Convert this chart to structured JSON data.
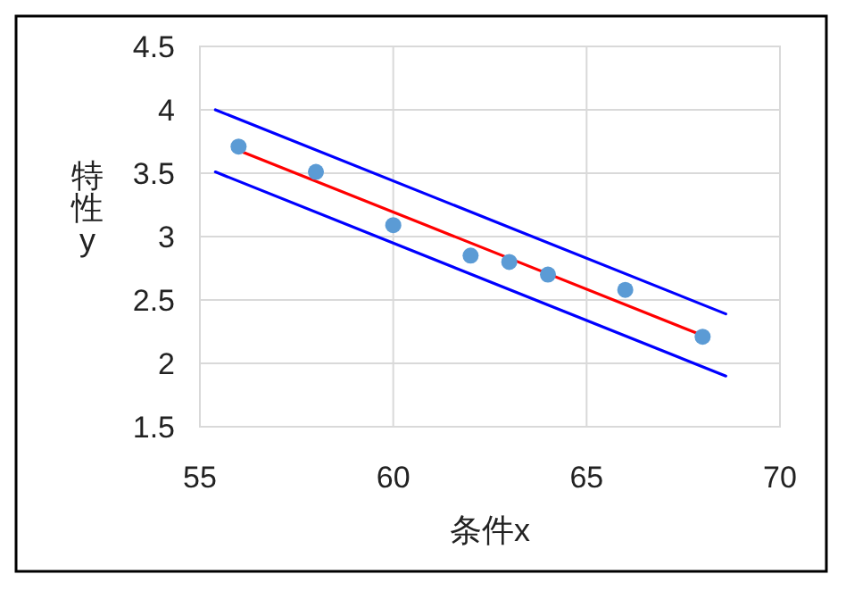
{
  "chart_data": {
    "type": "scatter",
    "xlabel": "条件x",
    "ylabel": "特性y",
    "xlim": [
      55,
      70
    ],
    "xticks": [
      55,
      60,
      65,
      70
    ],
    "ylim": [
      1.5,
      4.5
    ],
    "yticks": [
      1.5,
      2,
      2.5,
      3,
      3.5,
      4,
      4.5
    ],
    "grid": true,
    "series": [
      {
        "type": "line",
        "color": "#0000ff",
        "x": [
          55.4,
          68.6
        ],
        "values": [
          4.0,
          2.39
        ],
        "marker": "none"
      },
      {
        "type": "line",
        "color": "#0000ff",
        "x": [
          55.4,
          68.6
        ],
        "values": [
          3.51,
          1.9
        ],
        "marker": "none"
      },
      {
        "type": "line",
        "color": "#ff0000",
        "x": [
          56,
          68
        ],
        "values": [
          3.68,
          2.22
        ],
        "marker": "none"
      },
      {
        "color": "#5b9bd5",
        "x": [
          56,
          58,
          60,
          62,
          63,
          64,
          66,
          68
        ],
        "values": [
          3.71,
          3.51,
          3.09,
          2.85,
          2.8,
          2.7,
          2.58,
          2.21
        ],
        "marker": "circle"
      }
    ]
  }
}
